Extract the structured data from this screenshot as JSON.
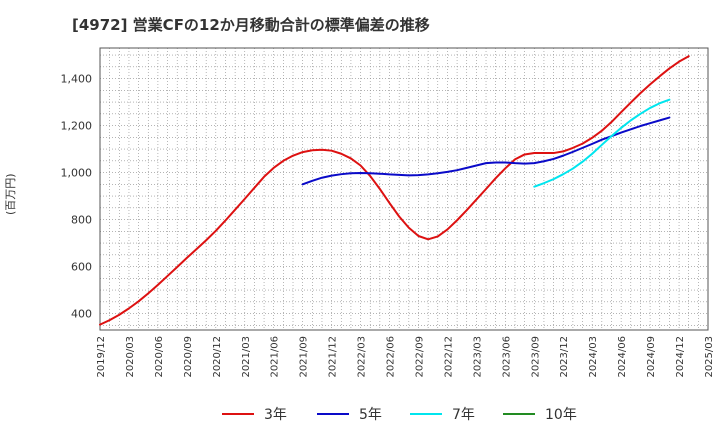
{
  "chart_data": {
    "type": "line",
    "title": "[4972]  営業CFの12か月移動合計の標準偏差の推移",
    "ylabel": "(百万円)",
    "xlabel": "",
    "ylim": [
      330,
      1530
    ],
    "yticks": [
      400,
      600,
      800,
      1000,
      1200,
      1400
    ],
    "ytick_labels": [
      "400",
      "600",
      "800",
      "1,000",
      "1,200",
      "1,400"
    ],
    "x_start": "2019/12",
    "x_end": "2025/03",
    "xticks": [
      "2019/12",
      "2020/03",
      "2020/06",
      "2020/09",
      "2020/12",
      "2021/03",
      "2021/06",
      "2021/09",
      "2021/12",
      "2022/03",
      "2022/06",
      "2022/09",
      "2022/12",
      "2023/03",
      "2023/06",
      "2023/09",
      "2023/12",
      "2024/03",
      "2024/06",
      "2024/09",
      "2024/12",
      "2025/03"
    ],
    "grid": true,
    "legend_position": "bottom",
    "series": [
      {
        "name": "3年",
        "color": "#dd1111",
        "points": [
          [
            "2019/12",
            353
          ],
          [
            "2020/01",
            372
          ],
          [
            "2020/02",
            395
          ],
          [
            "2020/03",
            422
          ],
          [
            "2020/04",
            452
          ],
          [
            "2020/05",
            486
          ],
          [
            "2020/06",
            522
          ],
          [
            "2020/07",
            560
          ],
          [
            "2020/08",
            598
          ],
          [
            "2020/09",
            637
          ],
          [
            "2020/10",
            674
          ],
          [
            "2020/11",
            712
          ],
          [
            "2020/12",
            752
          ],
          [
            "2021/01",
            796
          ],
          [
            "2021/02",
            842
          ],
          [
            "2021/03",
            888
          ],
          [
            "2021/04",
            935
          ],
          [
            "2021/05",
            982
          ],
          [
            "2021/06",
            1020
          ],
          [
            "2021/07",
            1050
          ],
          [
            "2021/08",
            1072
          ],
          [
            "2021/09",
            1087
          ],
          [
            "2021/10",
            1095
          ],
          [
            "2021/11",
            1097
          ],
          [
            "2021/12",
            1093
          ],
          [
            "2022/01",
            1080
          ],
          [
            "2022/02",
            1060
          ],
          [
            "2022/03",
            1030
          ],
          [
            "2022/04",
            985
          ],
          [
            "2022/05",
            930
          ],
          [
            "2022/06",
            870
          ],
          [
            "2022/07",
            813
          ],
          [
            "2022/08",
            765
          ],
          [
            "2022/09",
            730
          ],
          [
            "2022/10",
            716
          ],
          [
            "2022/11",
            728
          ],
          [
            "2022/12",
            758
          ],
          [
            "2023/01",
            797
          ],
          [
            "2023/02",
            840
          ],
          [
            "2023/03",
            885
          ],
          [
            "2023/04",
            930
          ],
          [
            "2023/05",
            976
          ],
          [
            "2023/06",
            1018
          ],
          [
            "2023/07",
            1056
          ],
          [
            "2023/08",
            1077
          ],
          [
            "2023/09",
            1083
          ],
          [
            "2023/10",
            1083
          ],
          [
            "2023/11",
            1083
          ],
          [
            "2023/12",
            1090
          ],
          [
            "2024/01",
            1105
          ],
          [
            "2024/02",
            1123
          ],
          [
            "2024/03",
            1148
          ],
          [
            "2024/04",
            1178
          ],
          [
            "2024/05",
            1215
          ],
          [
            "2024/06",
            1257
          ],
          [
            "2024/07",
            1298
          ],
          [
            "2024/08",
            1338
          ],
          [
            "2024/09",
            1375
          ],
          [
            "2024/10",
            1410
          ],
          [
            "2024/11",
            1443
          ],
          [
            "2024/12",
            1472
          ],
          [
            "2025/01",
            1495
          ]
        ]
      },
      {
        "name": "5年",
        "color": "#0a0ac8",
        "points": [
          [
            "2021/09",
            950
          ],
          [
            "2021/10",
            965
          ],
          [
            "2021/11",
            978
          ],
          [
            "2021/12",
            987
          ],
          [
            "2022/01",
            993
          ],
          [
            "2022/02",
            997
          ],
          [
            "2022/03",
            998
          ],
          [
            "2022/04",
            997
          ],
          [
            "2022/05",
            995
          ],
          [
            "2022/06",
            992
          ],
          [
            "2022/07",
            990
          ],
          [
            "2022/08",
            988
          ],
          [
            "2022/09",
            989
          ],
          [
            "2022/10",
            992
          ],
          [
            "2022/11",
            997
          ],
          [
            "2022/12",
            1003
          ],
          [
            "2023/01",
            1010
          ],
          [
            "2023/02",
            1020
          ],
          [
            "2023/03",
            1030
          ],
          [
            "2023/04",
            1040
          ],
          [
            "2023/05",
            1043
          ],
          [
            "2023/06",
            1043
          ],
          [
            "2023/07",
            1040
          ],
          [
            "2023/08",
            1038
          ],
          [
            "2023/09",
            1040
          ],
          [
            "2023/10",
            1048
          ],
          [
            "2023/11",
            1058
          ],
          [
            "2023/12",
            1072
          ],
          [
            "2024/01",
            1088
          ],
          [
            "2024/02",
            1105
          ],
          [
            "2024/03",
            1122
          ],
          [
            "2024/04",
            1140
          ],
          [
            "2024/05",
            1155
          ],
          [
            "2024/06",
            1170
          ],
          [
            "2024/07",
            1184
          ],
          [
            "2024/08",
            1198
          ],
          [
            "2024/09",
            1210
          ],
          [
            "2024/10",
            1222
          ],
          [
            "2024/11",
            1234
          ]
        ]
      },
      {
        "name": "7年",
        "color": "#00e5ee",
        "points": [
          [
            "2023/09",
            940
          ],
          [
            "2023/10",
            955
          ],
          [
            "2023/11",
            972
          ],
          [
            "2023/12",
            993
          ],
          [
            "2024/01",
            1017
          ],
          [
            "2024/02",
            1046
          ],
          [
            "2024/03",
            1080
          ],
          [
            "2024/04",
            1118
          ],
          [
            "2024/05",
            1155
          ],
          [
            "2024/06",
            1190
          ],
          [
            "2024/07",
            1222
          ],
          [
            "2024/08",
            1250
          ],
          [
            "2024/09",
            1275
          ],
          [
            "2024/10",
            1295
          ],
          [
            "2024/11",
            1310
          ]
        ]
      },
      {
        "name": "10年",
        "color": "#228b22",
        "points": []
      }
    ]
  }
}
